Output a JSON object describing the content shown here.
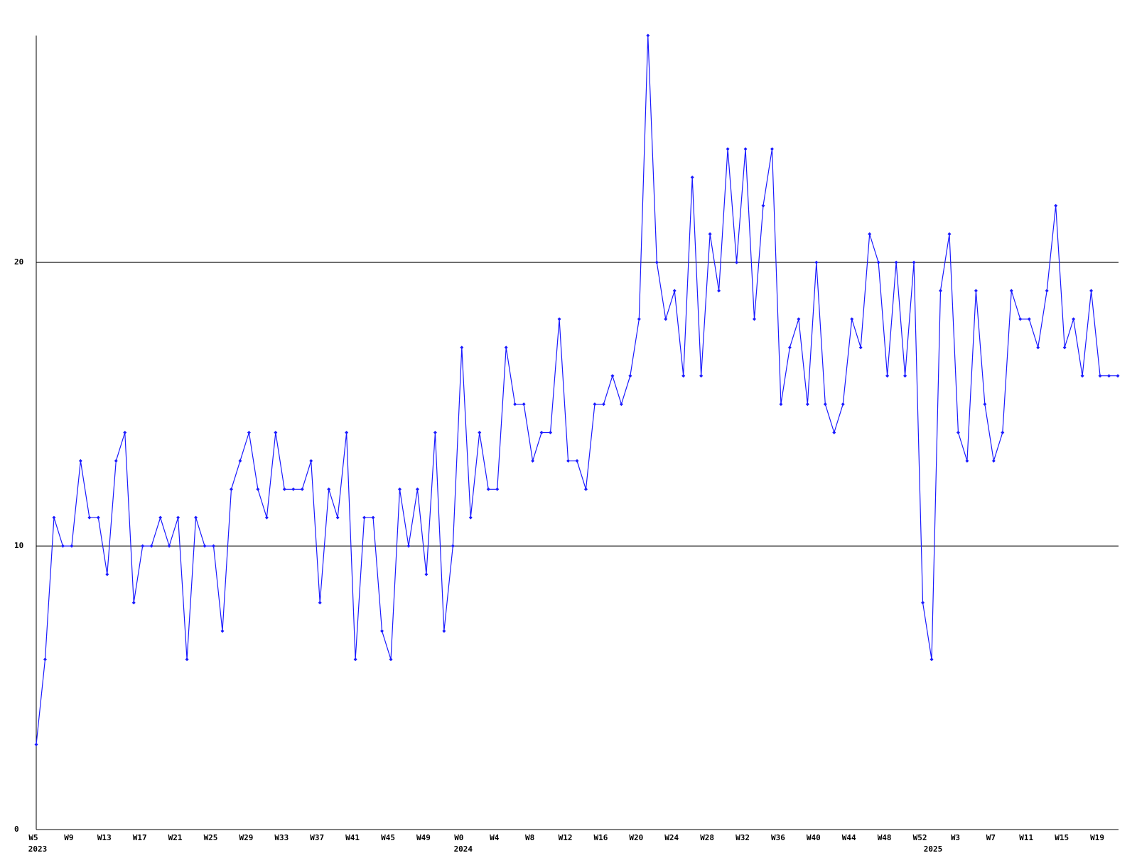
{
  "chart_data": {
    "type": "line",
    "color": "#1a1aff",
    "grid": true,
    "ylim": [
      0,
      28
    ],
    "yticks": [
      0,
      10,
      20
    ],
    "categories": [
      "W5",
      null,
      null,
      null,
      "W9",
      null,
      null,
      null,
      "W13",
      null,
      null,
      null,
      "W17",
      null,
      null,
      null,
      "W21",
      null,
      null,
      null,
      "W25",
      null,
      null,
      null,
      "W29",
      null,
      null,
      null,
      "W33",
      null,
      null,
      null,
      "W37",
      null,
      null,
      null,
      "W41",
      null,
      null,
      null,
      "W45",
      null,
      null,
      null,
      "W49",
      null,
      null,
      null,
      "W0",
      null,
      null,
      null,
      "W4",
      null,
      null,
      null,
      "W8",
      null,
      null,
      null,
      "W12",
      null,
      null,
      null,
      "W16",
      null,
      null,
      null,
      "W20",
      null,
      null,
      null,
      "W24",
      null,
      null,
      null,
      "W28",
      null,
      null,
      null,
      "W32",
      null,
      null,
      null,
      "W36",
      null,
      null,
      null,
      "W40",
      null,
      null,
      null,
      "W44",
      null,
      null,
      null,
      "W48",
      null,
      null,
      null,
      "W52",
      null,
      null,
      null,
      "W3",
      null,
      null,
      null,
      "W7",
      null,
      null,
      null,
      "W11",
      null,
      null,
      null,
      "W15",
      null,
      null,
      null,
      "W19",
      null,
      null
    ],
    "years": [
      "2023",
      null,
      null,
      null,
      null,
      null,
      null,
      null,
      null,
      null,
      null,
      null,
      null,
      null,
      null,
      null,
      null,
      null,
      null,
      null,
      null,
      null,
      null,
      null,
      null,
      null,
      null,
      null,
      null,
      null,
      null,
      null,
      null,
      null,
      null,
      null,
      null,
      null,
      null,
      null,
      null,
      null,
      null,
      null,
      null,
      null,
      null,
      null,
      "2024",
      null,
      null,
      null,
      null,
      null,
      null,
      null,
      null,
      null,
      null,
      null,
      null,
      null,
      null,
      null,
      null,
      null,
      null,
      null,
      null,
      null,
      null,
      null,
      null,
      null,
      null,
      null,
      null,
      null,
      null,
      null,
      null,
      null,
      null,
      null,
      null,
      null,
      null,
      null,
      null,
      null,
      null,
      null,
      null,
      null,
      null,
      null,
      null,
      null,
      null,
      null,
      null,
      "2025",
      null,
      null,
      null,
      null,
      null,
      null,
      null,
      null,
      null,
      null,
      null,
      null,
      null,
      null,
      null,
      null,
      null,
      null,
      null,
      null,
      null
    ],
    "values": [
      3,
      6,
      11,
      10,
      10,
      13,
      11,
      11,
      9,
      13,
      14,
      8,
      10,
      10,
      11,
      10,
      11,
      6,
      11,
      10,
      10,
      7,
      12,
      13,
      14,
      12,
      11,
      14,
      12,
      12,
      12,
      13,
      8,
      12,
      11,
      14,
      6,
      11,
      11,
      7,
      6,
      12,
      10,
      12,
      9,
      14,
      7,
      10,
      17,
      11,
      14,
      12,
      12,
      17,
      15,
      15,
      13,
      14,
      14,
      18,
      13,
      13,
      12,
      15,
      15,
      16,
      15,
      16,
      18,
      28,
      20,
      18,
      19,
      16,
      23,
      16,
      21,
      19,
      24,
      20,
      24,
      18,
      22,
      24,
      15,
      17,
      18,
      15,
      20,
      15,
      14,
      15,
      18,
      17,
      21,
      20,
      16,
      20,
      16,
      20,
      8,
      6,
      19,
      21,
      14,
      13,
      19,
      15,
      13,
      14,
      19,
      18,
      18,
      17,
      19,
      22,
      17,
      18,
      16,
      19,
      16,
      16,
      16
    ]
  }
}
